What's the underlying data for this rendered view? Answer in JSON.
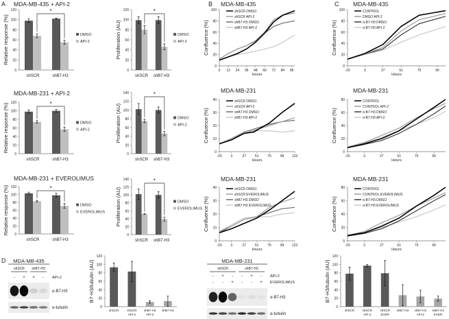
{
  "panel_labels": [
    "A",
    "B",
    "C",
    "D"
  ],
  "chart_data": [
    {
      "panel": "A",
      "type": "bar",
      "title": "MDA-MB-435 + API-2",
      "ylabel": "Relative response (%)",
      "ylim": [
        0,
        120
      ],
      "ystep": 20,
      "categories": [
        "shSCR",
        "shB7-H3"
      ],
      "significance": "*",
      "series": [
        {
          "name": "DMSO",
          "color": "#595959",
          "values": [
            98,
            102
          ],
          "errors": [
            4,
            1
          ]
        },
        {
          "name": "API-2",
          "color": "#bfbfbf",
          "values": [
            68,
            55
          ],
          "errors": [
            4,
            4
          ]
        }
      ]
    },
    {
      "panel": "A",
      "type": "bar",
      "title": "",
      "ylabel": "Proliferation (AU)",
      "ylim": [
        0,
        120
      ],
      "ystep": 20,
      "categories": [
        "shSCR",
        "shB7-H3"
      ],
      "significance": "*",
      "series": [
        {
          "name": "DMSO",
          "color": "#595959",
          "values": [
            99,
            99
          ],
          "errors": [
            7,
            7
          ]
        },
        {
          "name": "API-2",
          "color": "#bfbfbf",
          "values": [
            80,
            46
          ],
          "errors": [
            8,
            6
          ]
        }
      ]
    },
    {
      "panel": "A",
      "type": "bar",
      "title": "MDA-MB-231 + API-2",
      "ylabel": "Relative response (%)",
      "ylim": [
        0,
        120
      ],
      "ystep": 20,
      "categories": [
        "shSCR",
        "shB7-H3"
      ],
      "significance": "*",
      "series": [
        {
          "name": "DMSO",
          "color": "#595959",
          "values": [
            98,
            100
          ],
          "errors": [
            4,
            3
          ]
        },
        {
          "name": "API-2",
          "color": "#bfbfbf",
          "values": [
            74,
            57
          ],
          "errors": [
            3,
            5
          ]
        }
      ]
    },
    {
      "panel": "A",
      "type": "bar",
      "title": "",
      "ylabel": "Proliferation (AU)",
      "ylim": [
        0,
        140
      ],
      "ystep": 20,
      "categories": [
        "shSCR",
        "shB7-H3"
      ],
      "significance": "*",
      "series": [
        {
          "name": "DMSO",
          "color": "#595959",
          "values": [
            102,
            100
          ],
          "errors": [
            13,
            7
          ]
        },
        {
          "name": "API-2",
          "color": "#bfbfbf",
          "values": [
            75,
            46
          ],
          "errors": [
            4,
            5
          ]
        }
      ]
    },
    {
      "panel": "A",
      "type": "bar",
      "title": "MDA-MB-231 + EVEROLIMUS",
      "ylabel": "Relative response (%)",
      "ylim": [
        0,
        120
      ],
      "ystep": 20,
      "categories": [
        "shSCR",
        "shB7-H3"
      ],
      "significance": "*",
      "series": [
        {
          "name": "DMSO",
          "color": "#595959",
          "values": [
            103,
            98
          ],
          "errors": [
            3,
            5
          ]
        },
        {
          "name": "EVEROLIMUS",
          "color": "#bfbfbf",
          "values": [
            83,
            71
          ],
          "errors": [
            2,
            6
          ]
        }
      ]
    },
    {
      "panel": "A",
      "type": "bar",
      "title": "",
      "ylabel": "Proliferation (AU)",
      "ylim": [
        0,
        140
      ],
      "ystep": 20,
      "categories": [
        "shSCR",
        "shB7-H3"
      ],
      "significance": "*",
      "series": [
        {
          "name": "DMSO",
          "color": "#595959",
          "values": [
            102,
            100
          ],
          "errors": [
            13,
            8
          ]
        },
        {
          "name": "EVEROLIMUS",
          "color": "#bfbfbf",
          "values": [
            52,
            39
          ],
          "errors": [
            1,
            5
          ]
        }
      ]
    },
    {
      "panel": "B",
      "type": "line",
      "title": "MDA-MB-435",
      "xlabel": "Hours",
      "ylabel": "Confluence (%)",
      "xlim": [
        0,
        100
      ],
      "xticks": [
        0,
        12,
        24,
        36,
        48,
        60,
        72,
        84,
        96
      ],
      "ylim": [
        0,
        100
      ],
      "ystep": 20,
      "series": [
        {
          "name": "shSCR DMSO",
          "color": "#000000",
          "width": 1.6,
          "x": [
            0,
            12,
            24,
            36,
            48,
            60,
            72,
            84,
            100
          ],
          "y": [
            10,
            16,
            22,
            30,
            42,
            58,
            78,
            90,
            98
          ]
        },
        {
          "name": "shSCR API-2",
          "color": "#9a9a9a",
          "width": 1.2,
          "x": [
            0,
            12,
            24,
            36,
            48,
            60,
            72,
            84,
            100
          ],
          "y": [
            12,
            22,
            30,
            36,
            45,
            60,
            82,
            90,
            94
          ]
        },
        {
          "name": "shB7-H3 DMSO",
          "color": "#6e6e6e",
          "width": 1.2,
          "x": [
            0,
            12,
            24,
            36,
            48,
            60,
            72,
            84,
            100
          ],
          "y": [
            12,
            22,
            30,
            36,
            44,
            58,
            70,
            76,
            80
          ]
        },
        {
          "name": "shB7-H3 API-2",
          "color": "#c8c8c8",
          "width": 1.2,
          "x": [
            0,
            12,
            24,
            36,
            48,
            60,
            72,
            84,
            100
          ],
          "y": [
            10,
            16,
            20,
            23,
            26,
            30,
            34,
            42,
            55
          ]
        }
      ]
    },
    {
      "panel": "B",
      "type": "line",
      "title": "MDA-MB-231",
      "xlabel": "Hours",
      "ylabel": "Confluence (%)",
      "xlim": [
        -20,
        123
      ],
      "xticks": [
        -20,
        3,
        27,
        51,
        75,
        99,
        123
      ],
      "ylim": [
        0,
        40
      ],
      "ystep": 10,
      "series": [
        {
          "name": "shSCR DMSO",
          "color": "#000000",
          "width": 1.6,
          "x": [
            -20,
            3,
            27,
            45,
            75,
            99,
            123
          ],
          "y": [
            6,
            9,
            14,
            15,
            22,
            30,
            37
          ]
        },
        {
          "name": "shSCR API-2",
          "color": "#9a9a9a",
          "width": 1.2,
          "x": [
            -20,
            3,
            27,
            51,
            75,
            99,
            123
          ],
          "y": [
            6,
            10,
            14,
            17,
            20,
            23,
            26
          ]
        },
        {
          "name": "shB7-H3 DMSO",
          "color": "#6e6e6e",
          "width": 1.2,
          "x": [
            -20,
            3,
            27,
            51,
            75,
            99,
            123
          ],
          "y": [
            6,
            10,
            15,
            18,
            21,
            23,
            24
          ]
        },
        {
          "name": "shB7-H3 API-2",
          "color": "#c8c8c8",
          "width": 1.2,
          "x": [
            -20,
            3,
            27,
            51,
            75,
            99,
            123
          ],
          "y": [
            6,
            10,
            14,
            16,
            16,
            15,
            16
          ]
        }
      ]
    },
    {
      "panel": "B",
      "type": "line",
      "title": "MDA-MB-231",
      "xlabel": "Hours",
      "ylabel": "Confluence (%)",
      "xlim": [
        -20,
        123
      ],
      "xticks": [
        -20,
        3,
        27,
        51,
        75,
        99,
        123
      ],
      "ylim": [
        0,
        40
      ],
      "ystep": 10,
      "series": [
        {
          "name": "shSCR DMSO",
          "color": "#000000",
          "width": 1.6,
          "x": [
            -20,
            3,
            27,
            51,
            75,
            99,
            123
          ],
          "y": [
            6,
            9,
            13,
            17,
            23,
            30,
            37
          ]
        },
        {
          "name": "shSCR EVEROLIMUS",
          "color": "#9a9a9a",
          "width": 1.2,
          "x": [
            -20,
            3,
            27,
            51,
            75,
            99,
            123
          ],
          "y": [
            7,
            11,
            16,
            18,
            25,
            29,
            32
          ]
        },
        {
          "name": "shB7-H3 DMSO",
          "color": "#6e6e6e",
          "width": 1.2,
          "x": [
            -20,
            3,
            27,
            51,
            75,
            99,
            123
          ],
          "y": [
            6,
            11,
            16,
            18,
            21,
            24,
            25
          ]
        },
        {
          "name": "shB7-H3 EVEROLIMUS",
          "color": "#c8c8c8",
          "width": 1.2,
          "x": [
            -20,
            3,
            27,
            51,
            75,
            99,
            123
          ],
          "y": [
            7,
            12,
            17,
            18,
            18,
            20,
            21
          ]
        }
      ]
    },
    {
      "panel": "C",
      "type": "line",
      "title": "MDA-MB-435",
      "xlabel": "Hours",
      "ylabel": "Confluence (%)",
      "xlim": [
        -20,
        110
      ],
      "xticks": [
        -20,
        3,
        27,
        51,
        75,
        99
      ],
      "ylim": [
        0,
        100
      ],
      "ystep": 20,
      "series": [
        {
          "name": "CONTROL",
          "color": "#000000",
          "width": 1.6,
          "x": [
            -20,
            3,
            27,
            51,
            75,
            110
          ],
          "y": [
            12,
            22,
            38,
            70,
            90,
            98
          ]
        },
        {
          "name": "DMSO API-2",
          "color": "#9a9a9a",
          "width": 1.2,
          "x": [
            -20,
            3,
            27,
            51,
            75,
            110
          ],
          "y": [
            12,
            21,
            33,
            62,
            82,
            93
          ]
        },
        {
          "name": "α-B7-H3 DMSO",
          "color": "#3a3a3a",
          "width": 1.2,
          "x": [
            -20,
            3,
            27,
            51,
            75,
            110
          ],
          "y": [
            12,
            21,
            30,
            55,
            75,
            88
          ]
        },
        {
          "name": "α-B7-H3 API-2",
          "color": "#c8c8c8",
          "width": 1.2,
          "x": [
            -20,
            3,
            27,
            51,
            75,
            110
          ],
          "y": [
            12,
            20,
            28,
            42,
            55,
            70
          ]
        }
      ]
    },
    {
      "panel": "C",
      "type": "line",
      "title": "MDA-MB-231",
      "xlabel": "Hours",
      "ylabel": "Confluence (%)",
      "xlim": [
        -20,
        115
      ],
      "xticks": [
        -20,
        3,
        27,
        51,
        75,
        99
      ],
      "ylim": [
        0,
        80
      ],
      "ystep": 20,
      "series": [
        {
          "name": "CONTROL",
          "color": "#000000",
          "width": 1.6,
          "x": [
            -20,
            3,
            27,
            51,
            75,
            99,
            115
          ],
          "y": [
            6,
            12,
            20,
            32,
            50,
            68,
            80
          ]
        },
        {
          "name": "CONTROL API-2",
          "color": "#9a9a9a",
          "width": 1.2,
          "x": [
            -20,
            3,
            27,
            51,
            75,
            99,
            115
          ],
          "y": [
            7,
            14,
            25,
            36,
            52,
            66,
            74
          ]
        },
        {
          "name": "α-B7-H3 DMSO",
          "color": "#3a3a3a",
          "width": 1.2,
          "x": [
            -20,
            3,
            27,
            51,
            75,
            99,
            115
          ],
          "y": [
            6,
            11,
            17,
            28,
            42,
            58,
            70
          ]
        },
        {
          "name": "α-B7-H3 API-2",
          "color": "#c8c8c8",
          "width": 1.2,
          "x": [
            -20,
            3,
            27,
            51,
            75,
            99,
            115
          ],
          "y": [
            7,
            13,
            22,
            32,
            42,
            52,
            62
          ]
        }
      ]
    },
    {
      "panel": "C",
      "type": "line",
      "title": "MDA-MB-231",
      "xlabel": "Hours",
      "ylabel": "Confluence (%)",
      "xlim": [
        -20,
        115
      ],
      "xticks": [
        -20,
        3,
        27,
        51,
        75,
        99
      ],
      "ylim": [
        0,
        80
      ],
      "ystep": 20,
      "series": [
        {
          "name": "CONTROL",
          "color": "#000000",
          "width": 1.6,
          "x": [
            -20,
            3,
            27,
            51,
            75,
            99,
            115
          ],
          "y": [
            8,
            12,
            22,
            34,
            52,
            68,
            80
          ]
        },
        {
          "name": "CONTROL EVEROLIMUS",
          "color": "#9a9a9a",
          "width": 1.2,
          "x": [
            -20,
            3,
            27,
            51,
            75,
            99,
            115
          ],
          "y": [
            8,
            14,
            27,
            38,
            52,
            64,
            72
          ]
        },
        {
          "name": "α-B7-H3 DMSO",
          "color": "#3a3a3a",
          "width": 1.2,
          "x": [
            -20,
            3,
            27,
            51,
            75,
            99,
            115
          ],
          "y": [
            7,
            11,
            18,
            30,
            45,
            60,
            69
          ]
        },
        {
          "name": "α-B7-H3 EVEROLIMUS",
          "color": "#c8c8c8",
          "width": 1.2,
          "x": [
            -20,
            3,
            27,
            51,
            75,
            99,
            115
          ],
          "y": [
            8,
            12,
            20,
            28,
            36,
            46,
            54
          ]
        }
      ]
    },
    {
      "panel": "D",
      "type": "bar",
      "title": "",
      "ylabel": "B7-H3/tubulin (AU)",
      "ylim": [
        0,
        120
      ],
      "ystep": 20,
      "categories": [
        [
          "shSCR"
        ],
        [
          "shSCR",
          "API-2"
        ],
        [
          "shB7-H3",
          "API-2"
        ],
        [
          "shB7-H3"
        ]
      ],
      "series": [
        {
          "name": "",
          "values": [
            93,
            83,
            11,
            13
          ],
          "errors": [
            10,
            24,
            3,
            12
          ],
          "bar_colors": [
            "#595959",
            "#595959",
            "#a6a6a6",
            "#a6a6a6"
          ]
        }
      ]
    },
    {
      "panel": "D",
      "type": "bar",
      "title": "",
      "ylabel": "B7-H3/tubulin (AU)",
      "ylim": [
        0,
        120
      ],
      "ystep": 20,
      "categories": [
        [
          "shSCR"
        ],
        [
          "shSCR",
          "API-2"
        ],
        [
          "shSCR",
          "EVER"
        ],
        [
          "shB7-H3"
        ],
        [
          "shB7-H3",
          "API-2"
        ],
        [
          "shB7-H3",
          "EVER"
        ]
      ],
      "series": [
        {
          "name": "",
          "values": [
            78,
            97,
            79,
            27,
            24,
            19
          ],
          "errors": [
            15,
            3,
            30,
            25,
            15,
            6
          ],
          "bar_colors": [
            "#595959",
            "#595959",
            "#595959",
            "#a6a6a6",
            "#a6a6a6",
            "#a6a6a6"
          ]
        }
      ]
    }
  ],
  "blots": [
    {
      "title": "MDA-MB-435",
      "groups": [
        "shSCR",
        "shB7-H3"
      ],
      "treatments": [
        {
          "name": "API-2",
          "signs": [
            "-",
            "+",
            "+",
            "-"
          ]
        }
      ],
      "antibodies": [
        "α-B7-H3",
        "α-tubulin"
      ],
      "band_intensity": [
        [
          0.95,
          1.0,
          0.12,
          0.08
        ],
        [
          0.6,
          0.75,
          0.55,
          0.5
        ]
      ]
    },
    {
      "title": "MDA-MB-231",
      "groups": [
        "shSCR",
        "shB7-H3"
      ],
      "treatments": [
        {
          "name": "API-2",
          "signs": [
            "-",
            "+",
            "-",
            "-",
            "+",
            "-"
          ]
        },
        {
          "name": "EVEROLIMUS",
          "signs": [
            "-",
            "-",
            "+",
            "-",
            "-",
            "+"
          ]
        }
      ],
      "antibodies": [
        "α-B7-H3",
        "α-tubulin"
      ],
      "band_intensity": [
        [
          0.9,
          1.0,
          0.6,
          0.03,
          0.05,
          0.03
        ],
        [
          0.8,
          0.75,
          0.55,
          0.85,
          0.75,
          0.55
        ]
      ]
    }
  ]
}
